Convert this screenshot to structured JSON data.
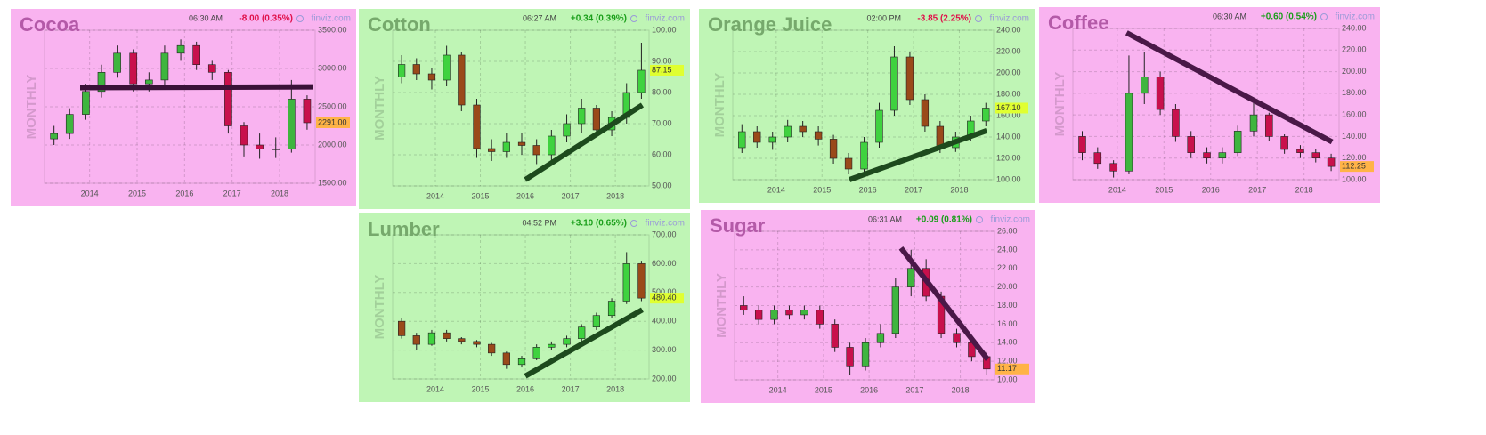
{
  "chart_data": [
    {
      "type": "candlestick",
      "title": "Cocoa",
      "title_color": "#b45aa8",
      "time": "06:30 AM",
      "change": "-8.00 (0.35%)",
      "change_color": "#e0104a",
      "source": "finviz.com",
      "watermark": "MONTHLY",
      "background": "#f9b3f0",
      "x": [
        2013.25,
        2013.58,
        2013.92,
        2014.25,
        2014.58,
        2014.92,
        2015.25,
        2015.58,
        2015.92,
        2016.25,
        2016.58,
        2016.92,
        2017.25,
        2017.58,
        2017.92,
        2018.25,
        2018.58
      ],
      "open": [
        2080,
        2150,
        2400,
        2700,
        2950,
        3200,
        2800,
        2850,
        3200,
        3300,
        3050,
        2950,
        2250,
        2000,
        1950,
        1950,
        2600
      ],
      "high": [
        2250,
        2480,
        2800,
        3050,
        3300,
        3250,
        2950,
        3300,
        3380,
        3350,
        3100,
        2980,
        2300,
        2150,
        2100,
        2850,
        2650
      ],
      "low": [
        2000,
        2080,
        2330,
        2620,
        2880,
        2700,
        2700,
        2780,
        3100,
        2980,
        2850,
        2150,
        1850,
        1820,
        1830,
        1900,
        2200
      ],
      "close": [
        2150,
        2400,
        2700,
        2950,
        3200,
        2800,
        2850,
        3200,
        3300,
        3050,
        2950,
        2250,
        2000,
        1950,
        1950,
        2600,
        2291
      ],
      "up_color": "#3fb53f",
      "down_color": "#c8104c",
      "xlim": [
        2013.05,
        2018.75
      ],
      "xticks": [
        2014,
        2015,
        2016,
        2017,
        2018
      ],
      "ylim": [
        1500,
        3500
      ],
      "yticks": [
        {
          "value": 1500,
          "label": "1500.00"
        },
        {
          "value": 2000,
          "label": "2000.00"
        },
        {
          "value": 2500,
          "label": "2500.00"
        },
        {
          "value": 3000,
          "label": "3000.00"
        },
        {
          "value": 3500,
          "label": "3500.00"
        }
      ],
      "grid": true,
      "price_label": "2291.00",
      "price_label_color": "#ffb347",
      "trendline": {
        "x": [
          2013.8,
          2018.7
        ],
        "y": [
          2750,
          2760
        ],
        "color": "#3a1238"
      }
    },
    {
      "type": "candlestick",
      "title": "Cotton",
      "title_color": "#76a96c",
      "time": "06:27 AM",
      "change": "+0.34 (0.39%)",
      "change_color": "#1a9e1a",
      "source": "finviz.com",
      "watermark": "MONTHLY",
      "background": "#bff5b5",
      "x": [
        2013.25,
        2013.58,
        2013.92,
        2014.25,
        2014.58,
        2014.92,
        2015.25,
        2015.58,
        2015.92,
        2016.25,
        2016.58,
        2016.92,
        2017.25,
        2017.58,
        2017.92,
        2018.25,
        2018.58
      ],
      "open": [
        85,
        89,
        86,
        84,
        92,
        76,
        62,
        61,
        64,
        63,
        60,
        66,
        70,
        75,
        68,
        72,
        80
      ],
      "high": [
        92,
        91,
        88,
        95,
        93,
        78,
        65,
        67,
        67,
        65,
        68,
        73,
        78,
        76,
        74,
        83,
        96
      ],
      "low": [
        83,
        84,
        81,
        82,
        74,
        59,
        58,
        59,
        60,
        57,
        58,
        64,
        67,
        66,
        66,
        70,
        78
      ],
      "close": [
        89,
        86,
        84,
        92,
        76,
        62,
        61,
        64,
        63,
        60,
        66,
        70,
        75,
        68,
        72,
        80,
        87.15
      ],
      "up_color": "#3fd23f",
      "down_color": "#9a4a1a",
      "xlim": [
        2013.05,
        2018.75
      ],
      "xticks": [
        2014,
        2015,
        2016,
        2017,
        2018
      ],
      "ylim": [
        50,
        100
      ],
      "yticks": [
        {
          "value": 50,
          "label": "50.00"
        },
        {
          "value": 60,
          "label": "60.00"
        },
        {
          "value": 70,
          "label": "70.00"
        },
        {
          "value": 80,
          "label": "80.00"
        },
        {
          "value": 90,
          "label": "90.00"
        },
        {
          "value": 100,
          "label": "100.00"
        }
      ],
      "grid": true,
      "price_label": "87.15",
      "price_label_color": "#e0ff30",
      "trendline": {
        "x": [
          2016,
          2018.6
        ],
        "y": [
          52,
          76
        ],
        "color": "#1d4a1d"
      }
    },
    {
      "type": "candlestick",
      "title": "Orange Juice",
      "title_color": "#76a96c",
      "time": "02:00 PM",
      "change": "-3.85 (2.25%)",
      "change_color": "#e0104a",
      "source": "finviz.com",
      "watermark": "MONTHLY",
      "background": "#bff5b5",
      "x": [
        2013.25,
        2013.58,
        2013.92,
        2014.25,
        2014.58,
        2014.92,
        2015.25,
        2015.58,
        2015.92,
        2016.25,
        2016.58,
        2016.92,
        2017.25,
        2017.58,
        2017.92,
        2018.25,
        2018.58
      ],
      "open": [
        130,
        145,
        135,
        140,
        150,
        145,
        138,
        120,
        110,
        135,
        165,
        215,
        175,
        150,
        130,
        140,
        155
      ],
      "high": [
        152,
        150,
        145,
        156,
        155,
        150,
        142,
        125,
        140,
        172,
        225,
        220,
        180,
        155,
        145,
        160,
        172
      ],
      "low": [
        125,
        130,
        128,
        135,
        140,
        132,
        115,
        105,
        106,
        130,
        160,
        170,
        145,
        125,
        126,
        136,
        150
      ],
      "close": [
        145,
        135,
        140,
        150,
        145,
        138,
        120,
        110,
        135,
        165,
        215,
        175,
        150,
        130,
        140,
        155,
        167.1
      ],
      "up_color": "#3fd23f",
      "down_color": "#9a4a1a",
      "xlim": [
        2013.05,
        2018.75
      ],
      "xticks": [
        2014,
        2015,
        2016,
        2017,
        2018
      ],
      "ylim": [
        100,
        240
      ],
      "yticks": [
        {
          "value": 100,
          "label": "100.00"
        },
        {
          "value": 120,
          "label": "120.00"
        },
        {
          "value": 140,
          "label": "140.00"
        },
        {
          "value": 160,
          "label": "160.00"
        },
        {
          "value": 180,
          "label": "180.00"
        },
        {
          "value": 200,
          "label": "200.00"
        },
        {
          "value": 220,
          "label": "220.00"
        },
        {
          "value": 240,
          "label": "240.00"
        }
      ],
      "grid": true,
      "price_label": "167.10",
      "price_label_color": "#e0ff30",
      "trendline": {
        "x": [
          2015.6,
          2018.6
        ],
        "y": [
          100,
          146
        ],
        "color": "#1d4a1d"
      }
    },
    {
      "type": "candlestick",
      "title": "Coffee",
      "title_color": "#b45aa8",
      "time": "06:30 AM",
      "change": "+0.60 (0.54%)",
      "change_color": "#1a9e1a",
      "source": "finviz.com",
      "watermark": "MONTHLY",
      "background": "#f9b3f0",
      "x": [
        2013.25,
        2013.58,
        2013.92,
        2014.25,
        2014.58,
        2014.92,
        2015.25,
        2015.58,
        2015.92,
        2016.25,
        2016.58,
        2016.92,
        2017.25,
        2017.58,
        2017.92,
        2018.25,
        2018.58
      ],
      "open": [
        140,
        125,
        115,
        108,
        180,
        195,
        165,
        140,
        125,
        120,
        125,
        145,
        160,
        140,
        128,
        125,
        120
      ],
      "high": [
        145,
        130,
        118,
        215,
        218,
        200,
        170,
        145,
        130,
        130,
        150,
        175,
        162,
        142,
        132,
        128,
        124
      ],
      "low": [
        118,
        110,
        102,
        105,
        170,
        160,
        135,
        120,
        115,
        115,
        122,
        140,
        136,
        124,
        120,
        116,
        108
      ],
      "close": [
        125,
        115,
        108,
        180,
        195,
        165,
        140,
        125,
        120,
        125,
        145,
        160,
        140,
        128,
        125,
        120,
        112.25
      ],
      "up_color": "#3fb53f",
      "down_color": "#c8104c",
      "xlim": [
        2013.05,
        2018.75
      ],
      "xticks": [
        2014,
        2015,
        2016,
        2017,
        2018
      ],
      "ylim": [
        100,
        240
      ],
      "yticks": [
        {
          "value": 100,
          "label": "100.00"
        },
        {
          "value": 120,
          "label": "120.00"
        },
        {
          "value": 140,
          "label": "140.00"
        },
        {
          "value": 160,
          "label": "160.00"
        },
        {
          "value": 180,
          "label": "180.00"
        },
        {
          "value": 200,
          "label": "200.00"
        },
        {
          "value": 220,
          "label": "220.00"
        },
        {
          "value": 240,
          "label": "240.00"
        }
      ],
      "grid": true,
      "price_label": "112.25",
      "price_label_color": "#ffb347",
      "trendline": {
        "x": [
          2014.2,
          2018.6
        ],
        "y": [
          236,
          135
        ],
        "color": "#4a1848"
      }
    },
    {
      "type": "candlestick",
      "title": "Lumber",
      "title_color": "#76a96c",
      "time": "04:52 PM",
      "change": "+3.10 (0.65%)",
      "change_color": "#1a9e1a",
      "source": "finviz.com",
      "watermark": "MONTHLY",
      "background": "#bff5b5",
      "x": [
        2013.25,
        2013.58,
        2013.92,
        2014.25,
        2014.58,
        2014.92,
        2015.25,
        2015.58,
        2015.92,
        2016.25,
        2016.58,
        2016.92,
        2017.25,
        2017.58,
        2017.92,
        2018.25,
        2018.58
      ],
      "open": [
        400,
        350,
        320,
        360,
        340,
        330,
        320,
        290,
        250,
        270,
        310,
        320,
        340,
        380,
        420,
        470,
        600
      ],
      "high": [
        410,
        360,
        370,
        370,
        345,
        335,
        325,
        295,
        280,
        320,
        330,
        350,
        390,
        430,
        480,
        640,
        610
      ],
      "low": [
        340,
        300,
        315,
        330,
        320,
        310,
        280,
        235,
        240,
        265,
        300,
        310,
        330,
        370,
        410,
        460,
        470
      ],
      "close": [
        350,
        320,
        360,
        340,
        330,
        320,
        290,
        250,
        270,
        310,
        320,
        340,
        380,
        420,
        470,
        600,
        480.4
      ],
      "up_color": "#3fd23f",
      "down_color": "#9a4a1a",
      "xlim": [
        2013.05,
        2018.75
      ],
      "xticks": [
        2014,
        2015,
        2016,
        2017,
        2018
      ],
      "ylim": [
        200,
        700
      ],
      "yticks": [
        {
          "value": 200,
          "label": "200.00"
        },
        {
          "value": 300,
          "label": "300.00"
        },
        {
          "value": 400,
          "label": "400.00"
        },
        {
          "value": 500,
          "label": "500.00"
        },
        {
          "value": 600,
          "label": "600.00"
        },
        {
          "value": 700,
          "label": "700.00"
        }
      ],
      "grid": true,
      "price_label": "480.40",
      "price_label_color": "#e0ff30",
      "trendline": {
        "x": [
          2016,
          2018.6
        ],
        "y": [
          210,
          440
        ],
        "color": "#1d4a1d"
      }
    },
    {
      "type": "candlestick",
      "title": "Sugar",
      "title_color": "#b45aa8",
      "time": "06:31 AM",
      "change": "+0.09 (0.81%)",
      "change_color": "#1a9e1a",
      "source": "finviz.com",
      "watermark": "MONTHLY",
      "background": "#f9b3f0",
      "x": [
        2013.25,
        2013.58,
        2013.92,
        2014.25,
        2014.58,
        2014.92,
        2015.25,
        2015.58,
        2015.92,
        2016.25,
        2016.58,
        2016.92,
        2017.25,
        2017.58,
        2017.92,
        2018.25,
        2018.58
      ],
      "open": [
        18,
        17.5,
        16.5,
        17.5,
        17,
        17.5,
        16,
        13.5,
        11.5,
        14,
        15,
        20,
        22,
        19,
        15,
        14,
        12.5
      ],
      "high": [
        19,
        18,
        18,
        18,
        18,
        18,
        16.5,
        14,
        14.5,
        16,
        21,
        24,
        23,
        19.5,
        15.5,
        14.5,
        13
      ],
      "low": [
        17,
        16,
        16,
        16.5,
        16.5,
        15.5,
        13,
        10.5,
        11,
        13.5,
        14.5,
        19,
        18.5,
        14.5,
        13.5,
        12,
        10.5
      ],
      "close": [
        17.5,
        16.5,
        17.5,
        17,
        17.5,
        16,
        13.5,
        11.5,
        14,
        15,
        20,
        22,
        19,
        15,
        14,
        12.5,
        11.17
      ],
      "up_color": "#3fb53f",
      "down_color": "#c8104c",
      "xlim": [
        2013.05,
        2018.75
      ],
      "xticks": [
        2014,
        2015,
        2016,
        2017,
        2018
      ],
      "ylim": [
        10,
        26
      ],
      "yticks": [
        {
          "value": 10,
          "label": "10.00"
        },
        {
          "value": 12,
          "label": "12.00"
        },
        {
          "value": 14,
          "label": "14.00"
        },
        {
          "value": 16,
          "label": "16.00"
        },
        {
          "value": 18,
          "label": "18.00"
        },
        {
          "value": 20,
          "label": "20.00"
        },
        {
          "value": 22,
          "label": "22.00"
        },
        {
          "value": 24,
          "label": "24.00"
        },
        {
          "value": 26,
          "label": "26.00"
        }
      ],
      "grid": true,
      "price_label": "11.17",
      "price_label_color": "#ffb347",
      "trendline": {
        "x": [
          2016.7,
          2018.6
        ],
        "y": [
          24.2,
          12.2
        ],
        "color": "#4a1848"
      }
    }
  ]
}
